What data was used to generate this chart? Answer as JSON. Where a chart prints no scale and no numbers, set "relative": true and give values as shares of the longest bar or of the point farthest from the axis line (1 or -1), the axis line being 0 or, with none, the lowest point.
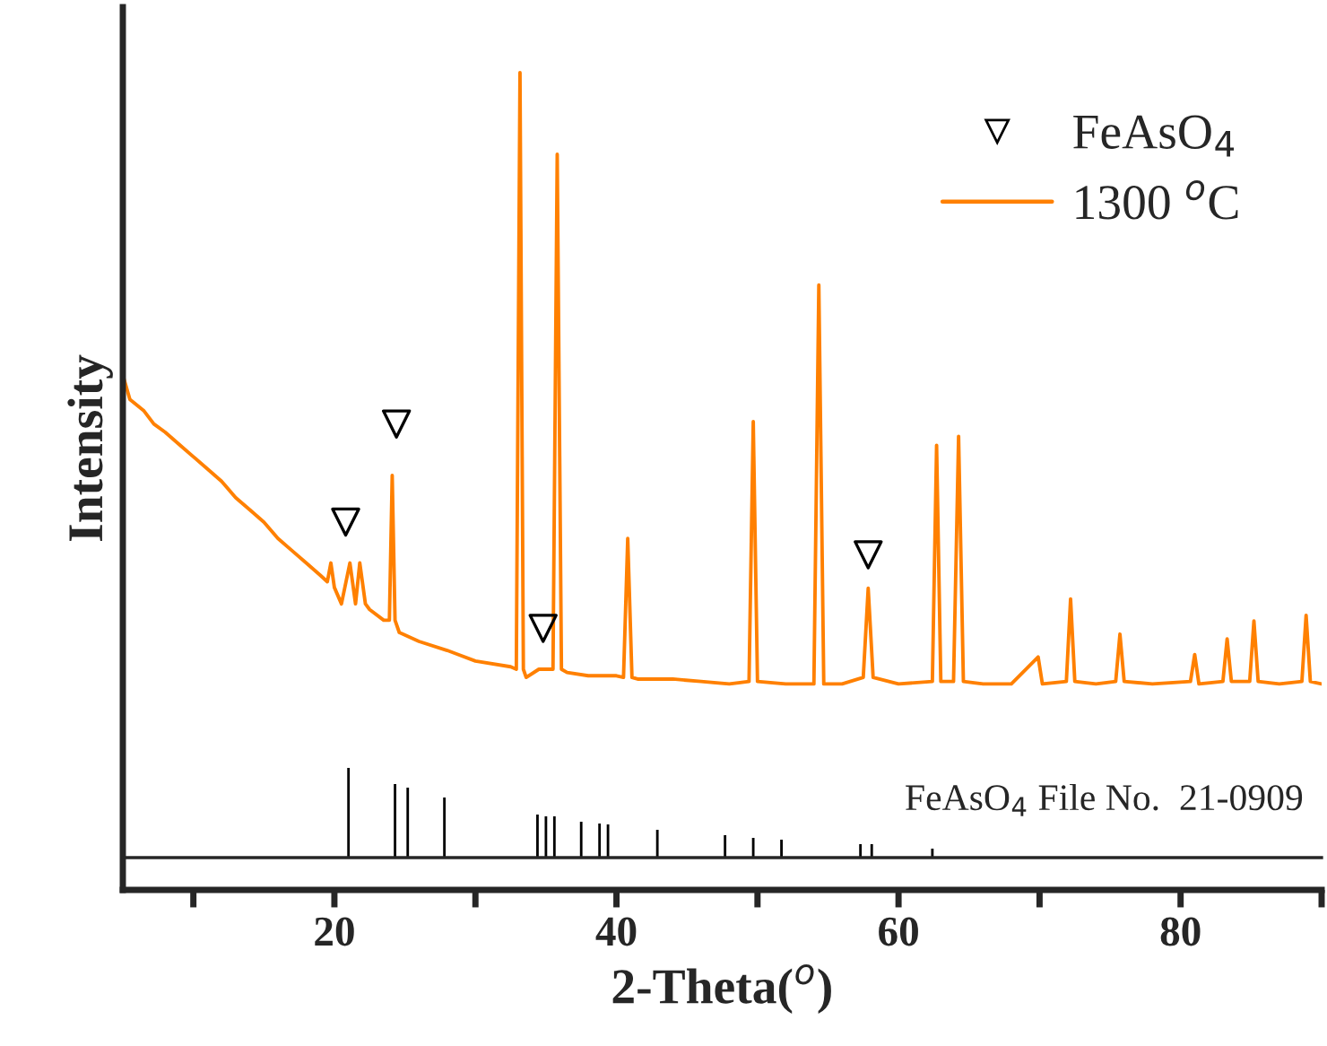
{
  "chart_data": [
    {
      "type": "line",
      "relative": true,
      "xlabel": "2-Theta($^{o}$)",
      "ylabel": "Intensity",
      "xlim": [
        5,
        90
      ],
      "xticks": [
        {
          "value": 10,
          "label": null
        },
        20,
        {
          "value": 30,
          "label": null
        },
        40,
        {
          "value": 50,
          "label": null
        },
        60,
        {
          "value": 70,
          "label": null
        },
        80,
        {
          "value": 90,
          "label": null
        }
      ],
      "legend": "top right",
      "series": [
        {
          "name": "FeAsO$_{4}$",
          "type": "scatter",
          "marker": "triangle",
          "color": "#000000",
          "x": [
            20.8,
            24.4,
            34.8,
            57.85
          ],
          "values": [
            0.45,
            0.57,
            0.32,
            0.41
          ]
        },
        {
          "name": "1300 $^{o}$C",
          "color": "#ff8000",
          "x": [
            5,
            5.5,
            6.5,
            7.2,
            8,
            9,
            10,
            11,
            12,
            13,
            14,
            15,
            16,
            17,
            18,
            19,
            19.5,
            19.75,
            20,
            20.5,
            21.1,
            21.5,
            21.8,
            22.2,
            22.5,
            23.5,
            23.9,
            24.1,
            24.3,
            24.6,
            26,
            28,
            30,
            32.5,
            32.9,
            33.16,
            33.4,
            33.6,
            34.5,
            35.5,
            35.8,
            36.1,
            36.5,
            38,
            40,
            40.5,
            40.8,
            41.1,
            41.5,
            44,
            46,
            48,
            49.4,
            49.7,
            50,
            52,
            54,
            54.35,
            54.7,
            56,
            57.5,
            57.85,
            58.2,
            60,
            62.4,
            62.7,
            63,
            63.9,
            64.26,
            64.6,
            66,
            68,
            69.9,
            70.2,
            71.9,
            72.2,
            72.5,
            74,
            75.4,
            75.7,
            76,
            78,
            80.7,
            81,
            81.3,
            83,
            83.3,
            83.6,
            84.9,
            85.2,
            85.5,
            87,
            88.6,
            88.9,
            89.2,
            90
          ],
          "values": [
            0.63,
            0.6,
            0.586,
            0.57,
            0.56,
            0.545,
            0.53,
            0.515,
            0.5,
            0.48,
            0.465,
            0.45,
            0.43,
            0.415,
            0.4,
            0.385,
            0.377,
            0.4,
            0.37,
            0.35,
            0.4,
            0.35,
            0.4,
            0.35,
            0.343,
            0.33,
            0.33,
            0.507,
            0.33,
            0.315,
            0.304,
            0.293,
            0.28,
            0.273,
            0.27,
            1.0,
            0.27,
            0.26,
            0.27,
            0.27,
            0.9,
            0.27,
            0.266,
            0.262,
            0.262,
            0.26,
            0.43,
            0.26,
            0.258,
            0.258,
            0.255,
            0.252,
            0.255,
            0.573,
            0.255,
            0.252,
            0.252,
            0.74,
            0.252,
            0.252,
            0.26,
            0.369,
            0.26,
            0.252,
            0.255,
            0.544,
            0.255,
            0.255,
            0.555,
            0.255,
            0.252,
            0.252,
            0.285,
            0.252,
            0.255,
            0.356,
            0.255,
            0.252,
            0.255,
            0.313,
            0.255,
            0.252,
            0.255,
            0.288,
            0.252,
            0.255,
            0.307,
            0.255,
            0.255,
            0.329,
            0.255,
            0.252,
            0.255,
            0.336,
            0.255,
            0.252
          ]
        }
      ]
    },
    {
      "type": "bar",
      "relative": true,
      "xlim": [
        5,
        90
      ],
      "annotations": [
        "FeAsO$_{4}$ File No.  21-0909"
      ],
      "x": [
        21.0,
        24.3,
        25.2,
        27.8,
        34.4,
        35.0,
        35.6,
        37.5,
        38.8,
        39.4,
        42.9,
        47.7,
        49.7,
        51.7,
        57.3,
        58.1,
        62.4
      ],
      "series": [
        {
          "color": "#000000",
          "values": [
            1,
            0.82,
            0.78,
            0.67,
            0.48,
            0.46,
            0.46,
            0.4,
            0.38,
            0.37,
            0.31,
            0.25,
            0.22,
            0.2,
            0.15,
            0.15,
            0.1
          ]
        }
      ]
    }
  ]
}
